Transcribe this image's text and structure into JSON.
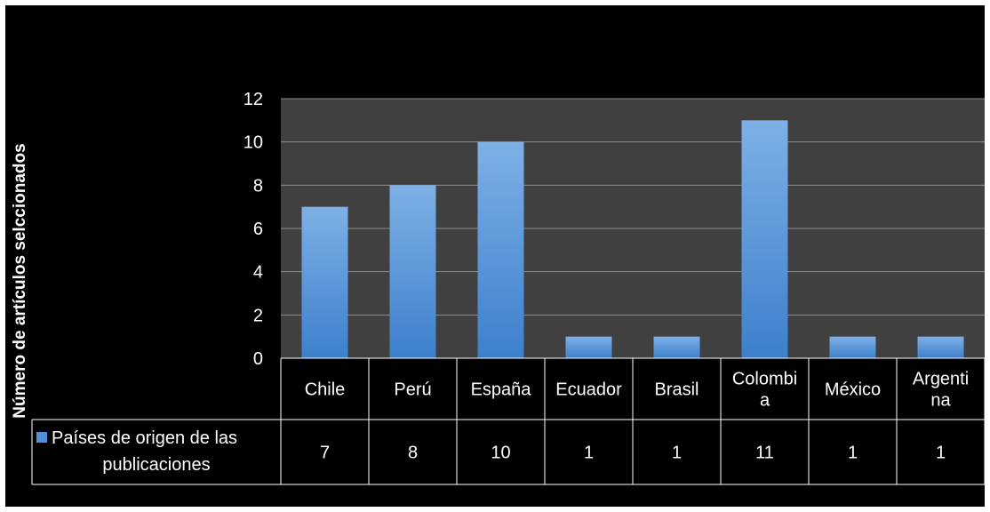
{
  "chart_data": {
    "type": "bar",
    "categories": [
      "Chile",
      "Perú",
      "España",
      "Ecuador",
      "Brasil",
      "Colombia",
      "México",
      "Argentina"
    ],
    "category_labels": [
      [
        "Chile"
      ],
      [
        "Perú"
      ],
      [
        "España"
      ],
      [
        "Ecuador"
      ],
      [
        "Brasil"
      ],
      [
        "Colombi",
        "a"
      ],
      [
        "México"
      ],
      [
        "Argenti",
        "na"
      ]
    ],
    "series": [
      {
        "name": "Países de origen de las publicaciones",
        "name_lines": [
          "Países de origen de las",
          "publicaciones"
        ],
        "values": [
          7,
          8,
          10,
          1,
          1,
          11,
          1,
          1
        ]
      }
    ],
    "title": "",
    "xlabel": "",
    "ylabel": "Número de artículos selccionados",
    "ylim": [
      0,
      12
    ],
    "yticks": [
      0,
      2,
      4,
      6,
      8,
      10,
      12
    ],
    "grid": true,
    "data_table": true,
    "legend": "data-table-left",
    "colors": {
      "background": "#000000",
      "plot_area": "#404040",
      "bar_top": "#7eb0e6",
      "bar_bottom": "#3c80cc",
      "legend_key": "#4f8fdc",
      "grid": "#8c8c8c",
      "text": "#ffffff"
    }
  }
}
